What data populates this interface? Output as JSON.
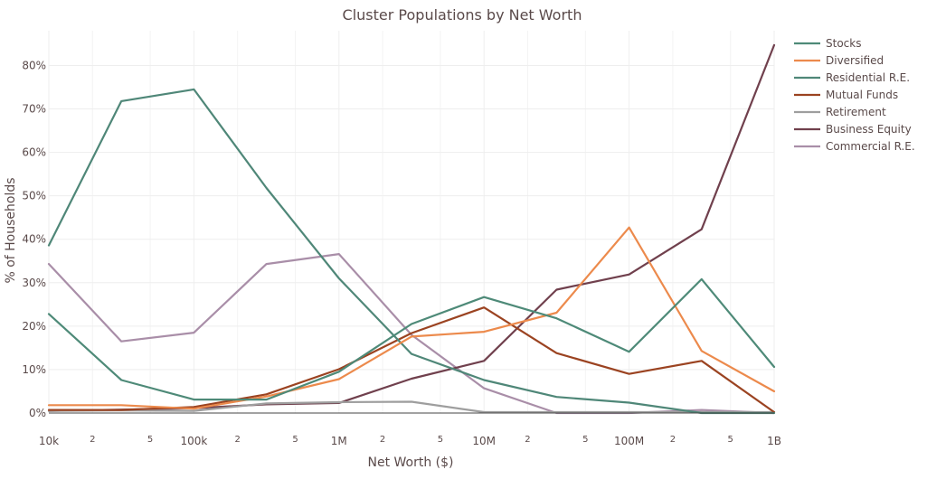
{
  "chart_data": {
    "type": "line",
    "title": "Cluster Populations by Net Worth",
    "xlabel": "Net Worth ($)",
    "ylabel": "% of Households",
    "x_scale": "log",
    "xlim": [
      10000,
      1000000000
    ],
    "ylim": [
      0,
      88
    ],
    "grid": true,
    "legend_position": "right",
    "x_major_ticks": [
      {
        "value": 10000,
        "label": "10k"
      },
      {
        "value": 100000,
        "label": "100k"
      },
      {
        "value": 1000000,
        "label": "1M"
      },
      {
        "value": 10000000,
        "label": "10M"
      },
      {
        "value": 100000000,
        "label": "100M"
      },
      {
        "value": 1000000000,
        "label": "1B"
      }
    ],
    "x_minor_ticks": [
      {
        "value": 20000,
        "label": "2"
      },
      {
        "value": 50000,
        "label": "5"
      },
      {
        "value": 200000,
        "label": "2"
      },
      {
        "value": 500000,
        "label": "5"
      },
      {
        "value": 2000000,
        "label": "2"
      },
      {
        "value": 5000000,
        "label": "5"
      },
      {
        "value": 20000000,
        "label": "2"
      },
      {
        "value": 50000000,
        "label": "5"
      },
      {
        "value": 200000000,
        "label": "2"
      },
      {
        "value": 500000000,
        "label": "5"
      }
    ],
    "y_ticks": [
      {
        "value": 0,
        "label": "0%"
      },
      {
        "value": 10,
        "label": "10%"
      },
      {
        "value": 20,
        "label": "20%"
      },
      {
        "value": 30,
        "label": "30%"
      },
      {
        "value": 40,
        "label": "40%"
      },
      {
        "value": 50,
        "label": "50%"
      },
      {
        "value": 60,
        "label": "60%"
      },
      {
        "value": 70,
        "label": "70%"
      },
      {
        "value": 80,
        "label": "80%"
      }
    ],
    "x": [
      10000,
      31623,
      100000,
      316228,
      1000000,
      3162278,
      10000000,
      31622777,
      100000000,
      316227766,
      1000000000
    ],
    "series": [
      {
        "name": "Stocks",
        "color": "#4e8a78",
        "values": [
          22.8,
          7.6,
          3.1,
          3.1,
          9.5,
          20.5,
          26.7,
          21.8,
          14.1,
          30.8,
          10.6
        ]
      },
      {
        "name": "Diversified",
        "color": "#ec8a4c",
        "values": [
          1.8,
          1.8,
          1.0,
          3.8,
          7.8,
          17.6,
          18.7,
          23.1,
          42.7,
          14.3,
          5.0
        ]
      },
      {
        "name": "Residential R.E.",
        "color": "#4f8778",
        "values": [
          38.6,
          71.8,
          74.5,
          51.8,
          31.0,
          13.6,
          7.6,
          3.7,
          2.4,
          0.0,
          0.0
        ]
      },
      {
        "name": "Mutual Funds",
        "color": "#9b4321",
        "values": [
          0.7,
          0.7,
          1.4,
          4.3,
          10.1,
          18.4,
          24.3,
          13.8,
          9.0,
          12.0,
          0.2
        ]
      },
      {
        "name": "Retirement",
        "color": "#9e9e9e",
        "values": [
          0.5,
          0.6,
          0.5,
          2.2,
          2.5,
          2.6,
          0.2,
          0.2,
          0.2,
          0.2,
          0.2
        ]
      },
      {
        "name": "Business Equity",
        "color": "#70404d",
        "values": [
          0.5,
          0.8,
          1.1,
          2.0,
          2.3,
          7.9,
          12.0,
          28.4,
          31.9,
          42.3,
          84.7
        ]
      },
      {
        "name": "Commercial R.E.",
        "color": "#a98ea8",
        "values": [
          34.3,
          16.5,
          18.5,
          34.3,
          36.6,
          18.0,
          5.7,
          0.0,
          0.0,
          0.7,
          0.0
        ]
      }
    ]
  }
}
